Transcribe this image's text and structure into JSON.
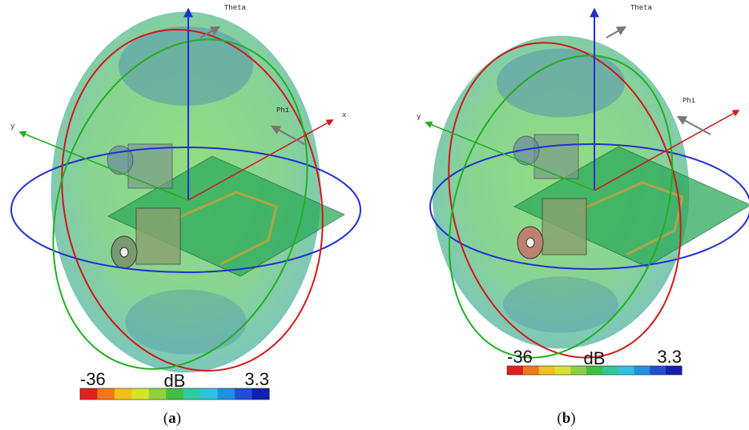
{
  "panels": [
    {
      "axes": {
        "theta": "Theta",
        "phi": "Phi",
        "x": "x",
        "y": "y"
      },
      "colorbar": {
        "min": "-36",
        "unit": "dB",
        "max": "3.3"
      },
      "caption": {
        "prefix": "(",
        "label": "a",
        "suffix": ")"
      }
    },
    {
      "axes": {
        "theta": "Theta",
        "phi": "Phi",
        "x": "x",
        "y": "y"
      },
      "colorbar": {
        "min": "-36",
        "unit": "dB",
        "max": "3.3"
      },
      "caption": {
        "prefix": "(",
        "label": "b",
        "suffix": ")"
      }
    }
  ]
}
